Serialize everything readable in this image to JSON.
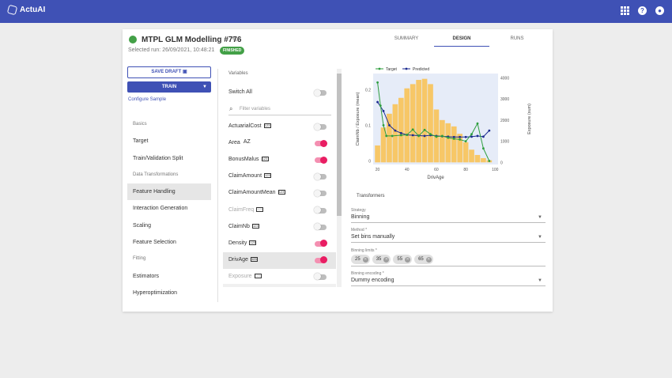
{
  "app": {
    "name": "ActuAI"
  },
  "topbar_icons": [
    "apps-grid-icon",
    "help-icon",
    "account-icon"
  ],
  "project": {
    "title": "MTPL GLM Modelling #776",
    "selected_run": "Selected run: 26/09/2021, 10:48:21",
    "status": "FINISHED",
    "status_color": "#43a047"
  },
  "tabs": [
    {
      "label": "SUMMARY",
      "active": false
    },
    {
      "label": "DESIGN",
      "active": true
    },
    {
      "label": "RUNS",
      "active": false
    }
  ],
  "actions": {
    "save_draft": "SAVE DRAFT",
    "train": "TRAIN",
    "configure_sample": "Configure Sample"
  },
  "nav": [
    {
      "label": "Basics",
      "type": "header"
    },
    {
      "label": "Target",
      "type": "item"
    },
    {
      "label": "Train/Validation Split",
      "type": "item"
    },
    {
      "label": "Data Transformations",
      "type": "header"
    },
    {
      "label": "Feature Handling",
      "type": "item",
      "active": true
    },
    {
      "label": "Interaction Generation",
      "type": "item"
    },
    {
      "label": "Scaling",
      "type": "item"
    },
    {
      "label": "Feature Selection",
      "type": "item"
    },
    {
      "label": "Fitting",
      "type": "header"
    },
    {
      "label": "Estimators",
      "type": "item"
    },
    {
      "label": "Hyperoptimization",
      "type": "item"
    }
  ],
  "variables": {
    "title": "Variables",
    "switch_all": "Switch All",
    "filter_placeholder": "Filter variables",
    "badge_numeric": "123",
    "badge_text": "AZ",
    "items": [
      {
        "name": "ActuarialCost",
        "type": "numeric",
        "on": false
      },
      {
        "name": "Area",
        "type": "text",
        "on": true
      },
      {
        "name": "BonusMalus",
        "type": "numeric",
        "on": true
      },
      {
        "name": "ClaimAmount",
        "type": "numeric",
        "on": false
      },
      {
        "name": "ClaimAmountMean",
        "type": "numeric",
        "on": false
      },
      {
        "name": "ClaimFreq",
        "type": "numeric",
        "on": false,
        "disabled": true
      },
      {
        "name": "ClaimNb",
        "type": "numeric",
        "on": false
      },
      {
        "name": "Density",
        "type": "numeric",
        "on": true
      },
      {
        "name": "DrivAge",
        "type": "numeric",
        "on": true,
        "selected": true
      },
      {
        "name": "Exposure",
        "type": "numeric",
        "on": false,
        "disabled": true
      }
    ]
  },
  "chart_data": {
    "type": "bar",
    "title": "",
    "xlabel": "DrivAge",
    "ylabel": "ClaimNb / Exposure (mean)",
    "y2label": "Exposure (sum)",
    "legend": [
      "Target",
      "Predicted"
    ],
    "legend_position": "top-left",
    "colors": {
      "bars": "#f7c767",
      "target": "#2e9e3e",
      "predicted": "#1b2a8f",
      "plot_bg": "#e6ecf8"
    },
    "x_ticks": [
      20,
      40,
      60,
      80,
      100
    ],
    "y_ticks": [
      0,
      0.1,
      0.2
    ],
    "y2_ticks": [
      0,
      1000,
      2000,
      3000,
      4000
    ],
    "xlim": [
      17,
      102
    ],
    "ylim": [
      -0.01,
      0.245
    ],
    "y2lim": [
      -100,
      4200
    ],
    "bars": {
      "name": "Exposure",
      "x": [
        20,
        24,
        28,
        32,
        36,
        40,
        44,
        48,
        52,
        56,
        60,
        64,
        68,
        72,
        76,
        80,
        84,
        88,
        92,
        96
      ],
      "values": [
        800,
        1650,
        2300,
        2750,
        3050,
        3500,
        3700,
        3900,
        3950,
        3700,
        2500,
        2000,
        1850,
        1700,
        1350,
        950,
        600,
        350,
        200,
        100
      ]
    },
    "series": [
      {
        "name": "Target",
        "x": [
          20,
          22,
          24,
          26,
          30,
          36,
          40,
          44,
          48,
          52,
          56,
          60,
          64,
          68,
          72,
          76,
          80,
          84,
          88,
          92,
          96
        ],
        "values": [
          0.22,
          0.155,
          0.1,
          0.07,
          0.07,
          0.072,
          0.073,
          0.088,
          0.07,
          0.087,
          0.075,
          0.068,
          0.07,
          0.065,
          0.062,
          0.06,
          0.055,
          0.075,
          0.105,
          0.035,
          0.0
        ]
      },
      {
        "name": "Predicted",
        "x": [
          20,
          24,
          28,
          32,
          36,
          40,
          44,
          48,
          52,
          56,
          60,
          64,
          68,
          72,
          76,
          80,
          84,
          88,
          92,
          96
        ],
        "values": [
          0.165,
          0.14,
          0.1,
          0.085,
          0.078,
          0.073,
          0.072,
          0.071,
          0.07,
          0.072,
          0.07,
          0.069,
          0.068,
          0.067,
          0.067,
          0.067,
          0.068,
          0.07,
          0.068,
          0.085
        ]
      }
    ]
  },
  "transformers": {
    "title": "Transformers",
    "strategy_label": "Strategy",
    "strategy_value": "Binning",
    "method_label": "Method *",
    "method_value": "Set bins manually",
    "bin_limits_label": "Binning limits *",
    "bin_limits": [
      "25",
      "35",
      "55",
      "65"
    ],
    "encoding_label": "Binning encoding *",
    "encoding_value": "Dummy encoding"
  }
}
